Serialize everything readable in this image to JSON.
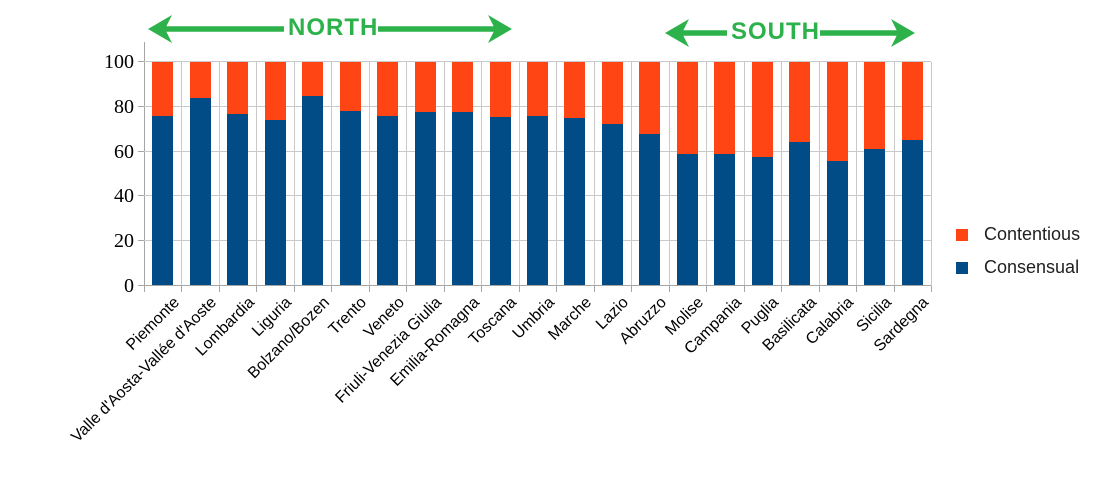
{
  "annotations": {
    "north": "NORTH",
    "south": "SOUTH",
    "arrow_color": "#2db24b"
  },
  "legend": {
    "items": [
      {
        "label": "Contentious",
        "color": "#fe4513"
      },
      {
        "label": "Consensual",
        "color": "#014c87"
      }
    ]
  },
  "chart_data": {
    "type": "bar",
    "stacked": true,
    "title": "",
    "xlabel": "",
    "ylabel": "",
    "categories": [
      "Piemonte",
      "Valle d'Aosta-Vallée d'Aoste",
      "Lombardia",
      "Liguria",
      "Bolzano/Bozen",
      "Trento",
      "Veneto",
      "Friuli-Venezia Giulia",
      "Emilia-Romagna",
      "Toscana",
      "Umbria",
      "Marche",
      "Lazio",
      "Abruzzo",
      "Molise",
      "Campania",
      "Puglia",
      "Basilicata",
      "Calabria",
      "Sicilia",
      "Sardegna"
    ],
    "series": [
      {
        "name": "Consensual",
        "color": "#014c87",
        "values": [
          76,
          84,
          77,
          74,
          85,
          78,
          76,
          77.5,
          77.5,
          75.5,
          76,
          75,
          72.5,
          68,
          59,
          59,
          57.5,
          64.5,
          56,
          61,
          65
        ]
      },
      {
        "name": "Contentious",
        "color": "#fe4513",
        "values": [
          24,
          16,
          23,
          26,
          15,
          22,
          24,
          22.5,
          22.5,
          24.5,
          24,
          25,
          27.5,
          32,
          41,
          41,
          42.5,
          35.5,
          44,
          39,
          35
        ]
      }
    ],
    "ylim": [
      0,
      100
    ],
    "yticks": [
      0,
      20,
      40,
      60,
      80,
      100
    ],
    "grid": true,
    "legend_position": "right",
    "group_annotations": [
      {
        "label": "NORTH",
        "from_category": "Piemonte",
        "to_category": "Toscana"
      },
      {
        "label": "SOUTH",
        "from_category": "Molise",
        "to_category": "Sardegna"
      }
    ]
  }
}
